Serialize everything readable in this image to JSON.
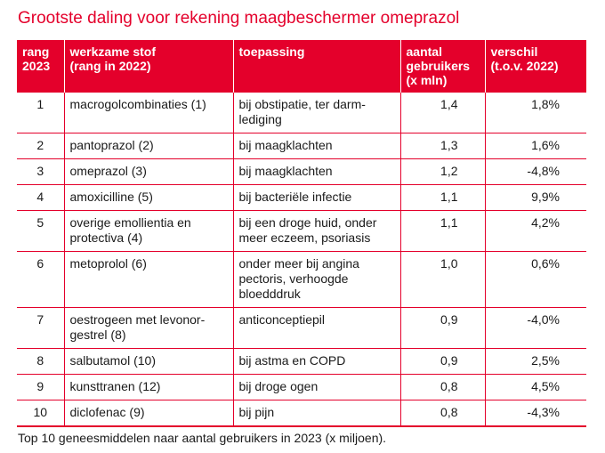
{
  "title": "Grootste daling voor rekening maagbeschermer omeprazol",
  "colors": {
    "accent": "#e4002b"
  },
  "table": {
    "headers": [
      [
        "rang",
        "2023"
      ],
      [
        "werkzame stof",
        "(rang in 2022)"
      ],
      [
        "toepassing"
      ],
      [
        "aantal",
        "gebruikers",
        "(x mln)"
      ],
      [
        "verschil",
        "(t.o.v. 2022)"
      ]
    ],
    "rows": [
      {
        "rank": "1",
        "substance": [
          "macrogolcombinaties (1)"
        ],
        "use": [
          "bij obstipatie, ter darm-",
          "lediging"
        ],
        "users": "1,4",
        "diff": "1,8%"
      },
      {
        "rank": "2",
        "substance": [
          "pantoprazol (2)"
        ],
        "use": [
          "bij maagklachten"
        ],
        "users": "1,3",
        "diff": "1,6%"
      },
      {
        "rank": "3",
        "substance": [
          "omeprazol (3)"
        ],
        "use": [
          "bij maagklachten"
        ],
        "users": "1,2",
        "diff": "-4,8%"
      },
      {
        "rank": "4",
        "substance": [
          "amoxicilline (5)"
        ],
        "use": [
          "bij bacteriële infectie"
        ],
        "users": "1,1",
        "diff": "9,9%"
      },
      {
        "rank": "5",
        "substance": [
          "overige emollientia en",
          "protectiva (4)"
        ],
        "use": [
          "bij een droge huid, onder",
          "meer eczeem, psoriasis"
        ],
        "users": "1,1",
        "diff": "4,2%"
      },
      {
        "rank": "6",
        "substance": [
          "metoprolol (6)"
        ],
        "use": [
          "onder meer bij angina",
          "pectoris, verhoogde",
          "bloedddruk"
        ],
        "users": "1,0",
        "diff": "0,6%"
      },
      {
        "rank": "7",
        "substance": [
          "oestrogeen met levonor-",
          "gestrel (8)"
        ],
        "use": [
          "anticonceptiepil"
        ],
        "users": "0,9",
        "diff": "-4,0%"
      },
      {
        "rank": "8",
        "substance": [
          "salbutamol (10)"
        ],
        "use": [
          "bij astma en COPD"
        ],
        "users": "0,9",
        "diff": "2,5%"
      },
      {
        "rank": "9",
        "substance": [
          "kunsttranen (12)"
        ],
        "use": [
          "bij droge ogen"
        ],
        "users": "0,8",
        "diff": "4,5%"
      },
      {
        "rank": "10",
        "substance": [
          "diclofenac (9)"
        ],
        "use": [
          "bij pijn"
        ],
        "users": "0,8",
        "diff": "-4,3%"
      }
    ]
  },
  "caption": "Top 10 geneesmiddelen naar aantal gebruikers in 2023 (x miljoen)."
}
